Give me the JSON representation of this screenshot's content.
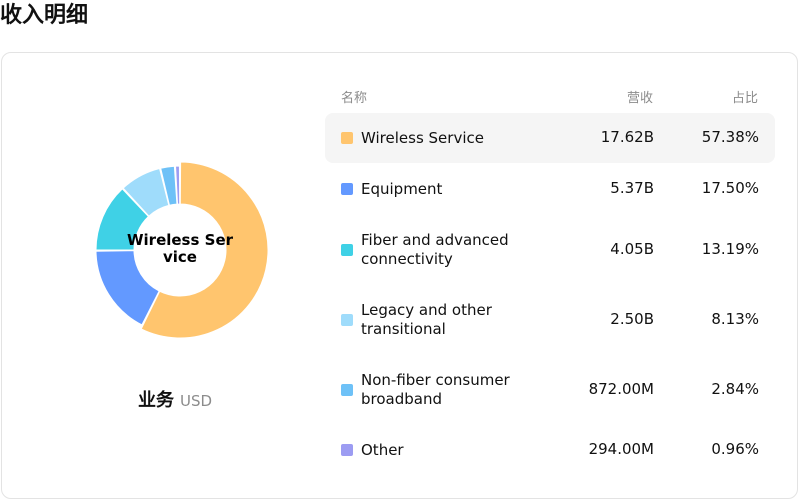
{
  "page_title": "收入明细",
  "caption": {
    "title": "业务",
    "unit": "USD"
  },
  "donut_center": "Wireless Service",
  "table": {
    "headers": {
      "name": "名称",
      "revenue": "营收",
      "share": "占比"
    },
    "rows": [
      {
        "name": "Wireless Service",
        "revenue": "17.62B",
        "share": "57.38%",
        "color": "#FFC56E",
        "highlighted": true
      },
      {
        "name": "Equipment",
        "revenue": "5.37B",
        "share": "17.50%",
        "color": "#6399FF"
      },
      {
        "name": "Fiber and advanced connectivity",
        "revenue": "4.05B",
        "share": "13.19%",
        "color": "#3FD1E6"
      },
      {
        "name": "Legacy and other transitional",
        "revenue": "2.50B",
        "share": "8.13%",
        "color": "#9FDCFB"
      },
      {
        "name": "Non-fiber consumer broadband",
        "revenue": "872.00M",
        "share": "2.84%",
        "color": "#6EC1F7"
      },
      {
        "name": "Other",
        "revenue": "294.00M",
        "share": "0.96%",
        "color": "#9C9CF2"
      }
    ]
  },
  "chart_data": {
    "type": "pie",
    "variant": "donut",
    "categories": [
      "Wireless Service",
      "Equipment",
      "Fiber and advanced connectivity",
      "Legacy and other transitional",
      "Non-fiber consumer broadband",
      "Other"
    ],
    "values": [
      57.38,
      17.5,
      13.19,
      8.13,
      2.84,
      0.96
    ],
    "revenue": [
      "17.62B",
      "5.37B",
      "4.05B",
      "2.50B",
      "872.00M",
      "294.00M"
    ],
    "colors": [
      "#FFC56E",
      "#6399FF",
      "#3FD1E6",
      "#9FDCFB",
      "#6EC1F7",
      "#9C9CF2"
    ],
    "highlighted": "Wireless Service"
  }
}
